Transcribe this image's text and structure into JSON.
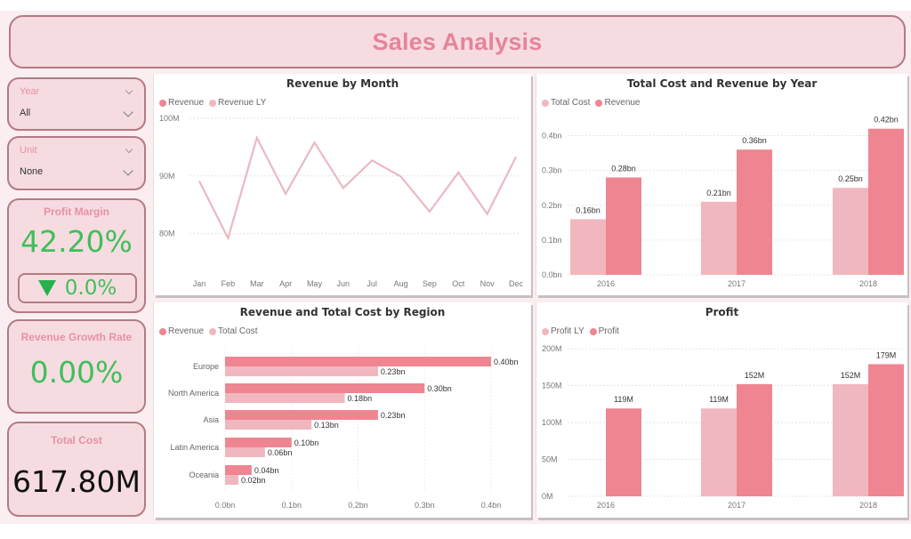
{
  "header": {
    "title": "Sales Analysis"
  },
  "slicers": [
    {
      "label": "Year",
      "value": "All"
    },
    {
      "label": "Unit",
      "value": "None"
    }
  ],
  "kpis": {
    "profit_margin": {
      "title": "Profit Margin",
      "value": "42.20%",
      "delta": "0.0%",
      "delta_icon": "triangle-down-icon"
    },
    "revenue_growth": {
      "title": "Revenue Growth Rate",
      "value": "0.00%"
    },
    "total_cost": {
      "title": "Total Cost",
      "value": "617.80M"
    }
  },
  "colors": {
    "dark_pink": "#ef8591",
    "light_pink": "#f1b7bf",
    "line": "#eab9c1",
    "green": "#3fbf5a",
    "title_pink": "#e6849a"
  },
  "chart_data": [
    {
      "id": "revenue_by_month",
      "type": "line",
      "title": "Revenue by Month",
      "legend": [
        "Revenue",
        "Revenue LY"
      ],
      "legend_placement": "top-left",
      "categories": [
        "Jan",
        "Feb",
        "Mar",
        "Apr",
        "May",
        "Jun",
        "Jul",
        "Aug",
        "Sep",
        "Oct",
        "Nov",
        "Dec"
      ],
      "yticks": [
        "80M",
        "90M",
        "100M"
      ],
      "ytick_values": [
        80,
        90,
        100
      ],
      "ylim": [
        75,
        100
      ],
      "grid": true,
      "series": [
        {
          "name": "Revenue LY",
          "values": [
            89.1,
            79.2,
            96.6,
            86.9,
            95.8,
            87.9,
            92.7,
            89.9,
            83.8,
            90.6,
            83.4,
            93.3
          ]
        }
      ]
    },
    {
      "id": "cost_revenue_by_year",
      "type": "bar",
      "title": "Total Cost and Revenue by Year",
      "legend": [
        "Total Cost",
        "Revenue"
      ],
      "legend_placement": "top-left",
      "categories": [
        "2016",
        "2017",
        "2018"
      ],
      "yticks": [
        "0.0bn",
        "0.1bn",
        "0.2bn",
        "0.3bn",
        "0.4bn"
      ],
      "ylim": [
        0,
        0.45
      ],
      "grid": true,
      "series": [
        {
          "name": "Total Cost",
          "values": [
            0.16,
            0.21,
            0.25
          ],
          "labels": [
            "0.16bn",
            "0.21bn",
            "0.25bn"
          ]
        },
        {
          "name": "Revenue",
          "values": [
            0.28,
            0.36,
            0.42
          ],
          "labels": [
            "0.28bn",
            "0.36bn",
            "0.42bn"
          ]
        }
      ]
    },
    {
      "id": "revenue_cost_by_region",
      "type": "bar",
      "orientation": "horizontal",
      "title": "Revenue and Total Cost by Region",
      "legend": [
        "Revenue",
        "Total Cost"
      ],
      "legend_placement": "top-left",
      "categories": [
        "Europe",
        "North America",
        "Asia",
        "Latin America",
        "Oceania"
      ],
      "xticks": [
        "0.0bn",
        "0.1bn",
        "0.2bn",
        "0.3bn",
        "0.4bn"
      ],
      "xlim": [
        0,
        0.4
      ],
      "grid": true,
      "series": [
        {
          "name": "Revenue",
          "values": [
            0.4,
            0.3,
            0.23,
            0.1,
            0.04
          ],
          "labels": [
            "0.40bn",
            "0.30bn",
            "0.23bn",
            "0.10bn",
            "0.04bn"
          ]
        },
        {
          "name": "Total Cost",
          "values": [
            0.23,
            0.18,
            0.13,
            0.06,
            0.02
          ],
          "labels": [
            "0.23bn",
            "0.18bn",
            "0.13bn",
            "0.06bn",
            "0.02bn"
          ]
        }
      ]
    },
    {
      "id": "profit",
      "type": "bar",
      "title": "Profit",
      "legend": [
        "Profit LY",
        "Profit"
      ],
      "legend_placement": "top-left",
      "categories": [
        "2016",
        "2017",
        "2018"
      ],
      "yticks": [
        "0M",
        "50M",
        "100M",
        "150M",
        "200M"
      ],
      "ylim": [
        0,
        200
      ],
      "grid": true,
      "series": [
        {
          "name": "Profit LY",
          "values": [
            null,
            119,
            152
          ],
          "labels": [
            "",
            "119M",
            "152M"
          ]
        },
        {
          "name": "Profit",
          "values": [
            119,
            152,
            179
          ],
          "labels": [
            "119M",
            "152M",
            "179M"
          ]
        }
      ]
    }
  ]
}
